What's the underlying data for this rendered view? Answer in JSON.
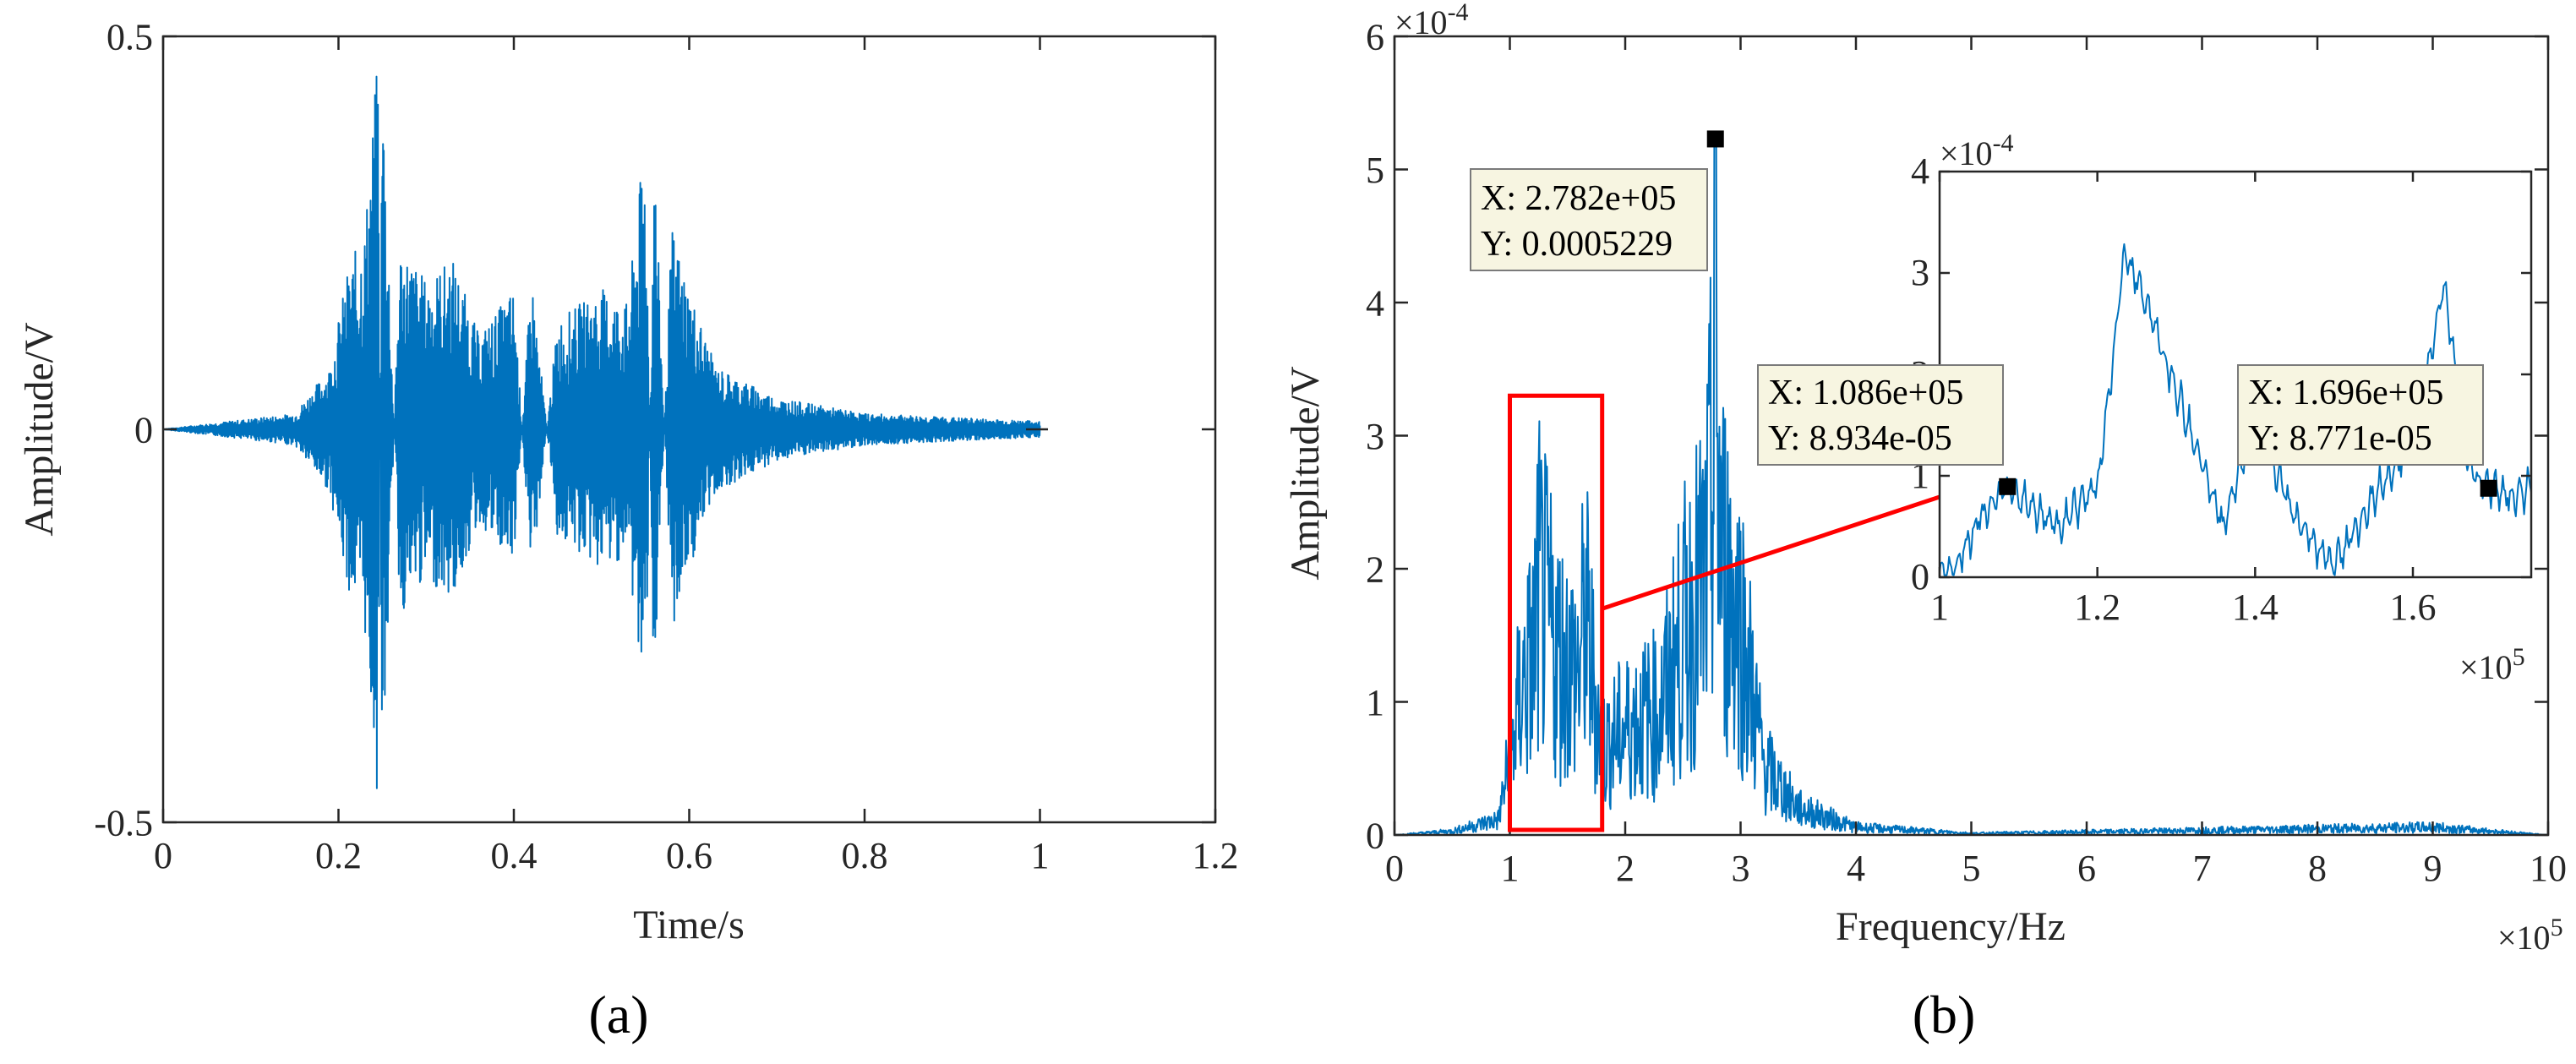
{
  "chart_data": [
    {
      "panel": "(a)",
      "type": "line",
      "xlabel": "Time/s",
      "ylabel": "Amplitude/V",
      "xlim": [
        0,
        1.2
      ],
      "ylim": [
        -0.5,
        0.5
      ],
      "xticks": [
        "0",
        "0.2",
        "0.4",
        "0.6",
        "0.8",
        "1",
        "1.2"
      ],
      "yticks": [
        "-0.5",
        "0",
        "0.5"
      ],
      "color": "#0072BD",
      "series": [
        {
          "points": [
            [
              0.0,
              0.0
            ],
            [
              0.15,
              0.02
            ],
            [
              0.19,
              0.08
            ],
            [
              0.21,
              0.2
            ],
            [
              0.23,
              0.26
            ],
            [
              0.245,
              0.48
            ],
            [
              0.25,
              -0.49
            ],
            [
              0.27,
              0.24
            ],
            [
              0.3,
              0.19
            ],
            [
              0.33,
              0.22
            ],
            [
              0.36,
              0.12
            ],
            [
              0.4,
              0.18
            ],
            [
              0.42,
              -0.2
            ],
            [
              0.45,
              0.14
            ],
            [
              0.5,
              0.18
            ],
            [
              0.53,
              0.16
            ],
            [
              0.55,
              0.38
            ],
            [
              0.56,
              -0.37
            ],
            [
              0.58,
              0.26
            ],
            [
              0.6,
              0.18
            ],
            [
              0.63,
              0.08
            ],
            [
              0.7,
              0.04
            ],
            [
              0.8,
              0.02
            ],
            [
              1.0,
              0.01
            ],
            [
              1.0,
              0.0
            ]
          ]
        }
      ]
    },
    {
      "panel": "(b)",
      "type": "line",
      "xlabel": "Frequency/Hz",
      "ylabel": "Amplitude/V",
      "xlim": [
        0,
        10
      ],
      "ylim": [
        0,
        6
      ],
      "x_exponent": "×10",
      "x_exponent_power": "5",
      "y_exponent": "×10",
      "y_exponent_power": "-4",
      "xticks": [
        "0",
        "1",
        "2",
        "3",
        "4",
        "5",
        "6",
        "7",
        "8",
        "9",
        "10"
      ],
      "yticks": [
        "0",
        "1",
        "2",
        "3",
        "4",
        "5",
        "6"
      ],
      "color": "#0072BD",
      "series": [
        {
          "points": [
            [
              0.0,
              0.0
            ],
            [
              0.5,
              0.05
            ],
            [
              0.9,
              0.2
            ],
            [
              1.0,
              1.0
            ],
            [
              1.1,
              1.9
            ],
            [
              1.2,
              2.3
            ],
            [
              1.25,
              3.2
            ],
            [
              1.4,
              2.4
            ],
            [
              1.6,
              2.1
            ],
            [
              1.65,
              2.9
            ],
            [
              1.8,
              1.1
            ],
            [
              2.0,
              1.4
            ],
            [
              2.3,
              1.6
            ],
            [
              2.5,
              2.6
            ],
            [
              2.7,
              3.3
            ],
            [
              2.782,
              5.229
            ],
            [
              2.85,
              3.5
            ],
            [
              3.0,
              2.8
            ],
            [
              3.2,
              0.9
            ],
            [
              3.5,
              0.35
            ],
            [
              4.0,
              0.1
            ],
            [
              5.0,
              0.02
            ],
            [
              9.0,
              0.1
            ],
            [
              10.0,
              0.0
            ]
          ]
        }
      ],
      "zoom_box_x": [
        1.0,
        1.8
      ],
      "zoom_box_y": [
        0,
        3.3
      ],
      "datatips": [
        {
          "x_label": "X: 2.782e+05",
          "y_label": "Y: 0.0005229",
          "x": 2.782,
          "y": 5.229
        }
      ],
      "inset": {
        "xlim": [
          1.0,
          1.75
        ],
        "ylim": [
          0,
          4
        ],
        "xticks": [
          "1",
          "1.2",
          "1.4",
          "1.6"
        ],
        "yticks": [
          "0",
          "1",
          "2",
          "3",
          "4"
        ],
        "x_exponent": "×10",
        "x_exponent_power": "5",
        "y_exponent": "×10",
        "y_exponent_power": "-4",
        "points": [
          [
            1.0,
            0.05
          ],
          [
            1.02,
            0.1
          ],
          [
            1.05,
            0.6
          ],
          [
            1.086,
            0.893
          ],
          [
            1.1,
            0.8
          ],
          [
            1.15,
            0.5
          ],
          [
            1.2,
            0.9
          ],
          [
            1.235,
            3.2
          ],
          [
            1.28,
            2.3
          ],
          [
            1.32,
            1.4
          ],
          [
            1.36,
            0.5
          ],
          [
            1.4,
            1.6
          ],
          [
            1.45,
            0.6
          ],
          [
            1.5,
            0.1
          ],
          [
            1.55,
            0.8
          ],
          [
            1.6,
            1.3
          ],
          [
            1.64,
            2.9
          ],
          [
            1.67,
            1.1
          ],
          [
            1.696,
            0.877
          ],
          [
            1.72,
            0.8
          ],
          [
            1.75,
            0.9
          ]
        ],
        "datatips": [
          {
            "x_label": "X: 1.086e+05",
            "y_label": "Y: 8.934e-05",
            "x": 1.086,
            "y": 0.8934
          },
          {
            "x_label": "X: 1.696e+05",
            "y_label": "Y: 8.771e-05",
            "x": 1.696,
            "y": 0.8771
          }
        ]
      }
    }
  ]
}
